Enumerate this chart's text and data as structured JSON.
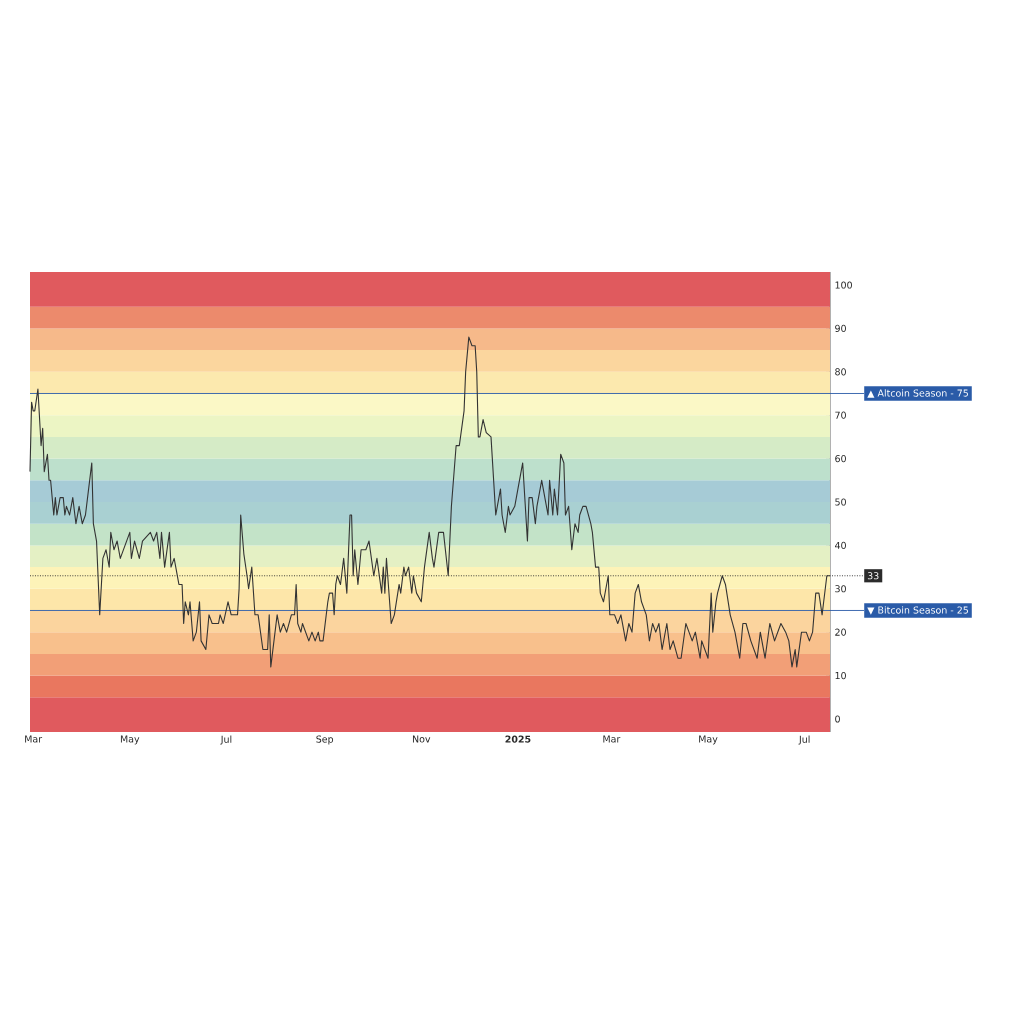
{
  "chart_data": {
    "type": "line",
    "x": [
      "2024-02-28",
      "2024-02-29",
      "2024-03-01",
      "2024-03-02",
      "2024-03-04",
      "2024-03-06",
      "2024-03-07",
      "2024-03-08",
      "2024-03-10",
      "2024-03-11",
      "2024-03-12",
      "2024-03-14",
      "2024-03-15",
      "2024-03-16",
      "2024-03-18",
      "2024-03-20",
      "2024-03-21",
      "2024-03-22",
      "2024-03-24",
      "2024-03-26",
      "2024-03-28",
      "2024-03-30",
      "2024-04-01",
      "2024-04-03",
      "2024-04-07",
      "2024-04-08",
      "2024-04-10",
      "2024-04-12",
      "2024-04-14",
      "2024-04-16",
      "2024-04-18",
      "2024-04-19",
      "2024-04-21",
      "2024-04-23",
      "2024-04-25",
      "2024-05-01",
      "2024-05-02",
      "2024-05-04",
      "2024-05-07",
      "2024-05-09",
      "2024-05-14",
      "2024-05-16",
      "2024-05-18",
      "2024-05-20",
      "2024-05-21",
      "2024-05-23",
      "2024-05-26",
      "2024-05-27",
      "2024-05-29",
      "2024-06-01",
      "2024-06-03",
      "2024-06-04",
      "2024-06-05",
      "2024-06-07",
      "2024-06-08",
      "2024-06-10",
      "2024-06-12",
      "2024-06-14",
      "2024-06-15",
      "2024-06-18",
      "2024-06-20",
      "2024-06-22",
      "2024-06-26",
      "2024-06-27",
      "2024-06-29",
      "2024-07-02",
      "2024-07-04",
      "2024-07-06",
      "2024-07-08",
      "2024-07-09",
      "2024-07-10",
      "2024-07-12",
      "2024-07-14",
      "2024-07-15",
      "2024-07-17",
      "2024-07-19",
      "2024-07-21",
      "2024-07-24",
      "2024-07-27",
      "2024-07-28",
      "2024-07-29",
      "2024-07-31",
      "2024-08-02",
      "2024-08-04",
      "2024-08-06",
      "2024-08-08",
      "2024-08-11",
      "2024-08-13",
      "2024-08-14",
      "2024-08-15",
      "2024-08-17",
      "2024-08-18",
      "2024-08-22",
      "2024-08-24",
      "2024-08-26",
      "2024-08-28",
      "2024-08-29",
      "2024-08-31",
      "2024-09-03",
      "2024-09-04",
      "2024-09-06",
      "2024-09-07",
      "2024-09-08",
      "2024-09-09",
      "2024-09-11",
      "2024-09-13",
      "2024-09-15",
      "2024-09-17",
      "2024-09-18",
      "2024-09-19",
      "2024-09-20",
      "2024-09-22",
      "2024-09-24",
      "2024-09-27",
      "2024-09-29",
      "2024-10-02",
      "2024-10-04",
      "2024-10-07",
      "2024-10-08",
      "2024-10-09",
      "2024-10-10",
      "2024-10-13",
      "2024-10-15",
      "2024-10-18",
      "2024-10-19",
      "2024-10-21",
      "2024-10-22",
      "2024-10-24",
      "2024-10-26",
      "2024-10-27",
      "2024-10-29",
      "2024-11-01",
      "2024-11-03",
      "2024-11-06",
      "2024-11-08",
      "2024-11-09",
      "2024-11-12",
      "2024-11-15",
      "2024-11-18",
      "2024-11-20",
      "2024-11-23",
      "2024-11-25",
      "2024-11-28",
      "2024-11-29",
      "2024-12-01",
      "2024-12-03",
      "2024-12-05",
      "2024-12-06",
      "2024-12-07",
      "2024-12-08",
      "2024-12-10",
      "2024-12-12",
      "2024-12-15",
      "2024-12-18",
      "2024-12-21",
      "2024-12-22",
      "2024-12-24",
      "2024-12-26",
      "2024-12-27",
      "2024-12-30",
      "2025-01-01",
      "2025-01-04",
      "2025-01-07",
      "2025-01-08",
      "2025-01-10",
      "2025-01-12",
      "2025-01-13",
      "2025-01-16",
      "2025-01-18",
      "2025-01-20",
      "2025-01-21",
      "2025-01-23",
      "2025-01-24",
      "2025-01-26",
      "2025-01-28",
      "2025-01-30",
      "2025-01-31",
      "2025-02-02",
      "2025-02-04",
      "2025-02-06",
      "2025-02-08",
      "2025-02-09",
      "2025-02-11",
      "2025-02-13",
      "2025-02-16",
      "2025-02-17",
      "2025-02-19",
      "2025-02-21",
      "2025-02-22",
      "2025-02-24",
      "2025-02-27",
      "2025-02-28",
      "2025-03-03",
      "2025-03-05",
      "2025-03-07",
      "2025-03-10",
      "2025-03-12",
      "2025-03-14",
      "2025-03-16",
      "2025-03-18",
      "2025-03-20",
      "2025-03-23",
      "2025-03-25",
      "2025-03-27",
      "2025-03-29",
      "2025-03-31",
      "2025-04-02",
      "2025-04-05",
      "2025-04-07",
      "2025-04-09",
      "2025-04-12",
      "2025-04-14",
      "2025-04-17",
      "2025-04-19",
      "2025-04-21",
      "2025-04-23",
      "2025-04-26",
      "2025-04-27",
      "2025-04-29",
      "2025-05-01",
      "2025-05-03",
      "2025-05-04",
      "2025-05-06",
      "2025-05-07",
      "2025-05-10",
      "2025-05-12",
      "2025-05-15",
      "2025-05-18",
      "2025-05-21",
      "2025-05-23",
      "2025-05-25",
      "2025-05-28",
      "2025-06-01",
      "2025-06-03",
      "2025-06-06",
      "2025-06-09",
      "2025-06-12",
      "2025-06-16",
      "2025-06-19",
      "2025-06-21",
      "2025-06-23",
      "2025-06-25",
      "2025-06-26",
      "2025-06-29",
      "2025-07-02",
      "2025-07-04",
      "2025-07-06",
      "2025-07-08",
      "2025-07-10",
      "2025-07-12",
      "2025-07-13",
      "2025-07-15",
      "2025-07-17"
    ],
    "series": [
      {
        "color": "#333333",
        "values": [
          57,
          73,
          71,
          71,
          76,
          63,
          67,
          57,
          61,
          55,
          55,
          47,
          51,
          47,
          51,
          51,
          47,
          49,
          47,
          51,
          45,
          49,
          45,
          47,
          59,
          45,
          41,
          24,
          37,
          39,
          35,
          43,
          39,
          41,
          37,
          43,
          37,
          41,
          37,
          41,
          43,
          41,
          43,
          37,
          43,
          35,
          43,
          35,
          37,
          31,
          31,
          22,
          27,
          24,
          27,
          18,
          20,
          27,
          18,
          16,
          24,
          22,
          22,
          24,
          22,
          27,
          24,
          24,
          24,
          30,
          47,
          38,
          33,
          30,
          35,
          24,
          24,
          16,
          16,
          24,
          12,
          18,
          24,
          20,
          22,
          20,
          24,
          24,
          31,
          22,
          20,
          22,
          18,
          20,
          18,
          20,
          18,
          18,
          27,
          29,
          29,
          24,
          31,
          33,
          31,
          37,
          29,
          47,
          47,
          33,
          39,
          31,
          39,
          39,
          41,
          33,
          37,
          29,
          35,
          29,
          37,
          22,
          24,
          31,
          29,
          35,
          33,
          35,
          29,
          33,
          29,
          27,
          35,
          43,
          37,
          35,
          43,
          43,
          33,
          49,
          63,
          63,
          71,
          80,
          88,
          86,
          86,
          80,
          65,
          65,
          69,
          66,
          65,
          47,
          53,
          47,
          43,
          49,
          47,
          49,
          53,
          59,
          41,
          51,
          51,
          45,
          49,
          55,
          51,
          47,
          55,
          47,
          53,
          47,
          61,
          59,
          47,
          49,
          39,
          45,
          43,
          47,
          49,
          49,
          45,
          43,
          35,
          35,
          29,
          27,
          33,
          24,
          24,
          22,
          24,
          18,
          22,
          20,
          29,
          31,
          27,
          24,
          18,
          22,
          20,
          22,
          16,
          22,
          16,
          18,
          14,
          14,
          22,
          20,
          18,
          20,
          14,
          18,
          16,
          14,
          29,
          20,
          27,
          29,
          33,
          31,
          24,
          20,
          14,
          22,
          22,
          18,
          14,
          20,
          14,
          22,
          18,
          22,
          20,
          18,
          12,
          16,
          12,
          20,
          20,
          18,
          20,
          29,
          29,
          24,
          27,
          33,
          33
        ]
      }
    ],
    "xlim": [
      "2024-02-28",
      "2025-07-17"
    ],
    "xticks": [
      {
        "value": "2024-03-01",
        "label": "Mar"
      },
      {
        "value": "2024-05-01",
        "label": "May"
      },
      {
        "value": "2024-07-01",
        "label": "Jul"
      },
      {
        "value": "2024-09-01",
        "label": "Sep"
      },
      {
        "value": "2024-11-01",
        "label": "Nov"
      },
      {
        "value": "2025-01-01",
        "label": "**2025**"
      },
      {
        "value": "2025-03-01",
        "label": "Mar"
      },
      {
        "value": "2025-05-01",
        "label": "May"
      },
      {
        "value": "2025-07-01",
        "label": "Jul"
      }
    ],
    "ylim": [
      -3,
      103
    ],
    "yticks": [
      0,
      10,
      20,
      30,
      40,
      50,
      60,
      70,
      80,
      90,
      100
    ],
    "line_style": "solid",
    "ref_lines": [
      {
        "axis": "y",
        "value": 75,
        "label": "▲ Altcoin Season - 75",
        "color": "#2a5ba8",
        "line_style": "solid"
      },
      {
        "axis": "y",
        "value": 25,
        "label": "▼ Bitcoin Season - 25",
        "color": "#2a5ba8",
        "line_style": "solid"
      },
      {
        "axis": "y",
        "value": 33,
        "label": "33",
        "color": "#2b2b2b",
        "line_style": "dotted"
      }
    ],
    "bands": [
      {
        "axis": "y",
        "from": -3,
        "to": 5,
        "color": "#e05a5e"
      },
      {
        "axis": "y",
        "from": 5,
        "to": 10,
        "color": "#e9775f"
      },
      {
        "axis": "y",
        "from": 10,
        "to": 15,
        "color": "#f29f77"
      },
      {
        "axis": "y",
        "from": 15,
        "to": 20,
        "color": "#f8c08c"
      },
      {
        "axis": "y",
        "from": 20,
        "to": 25,
        "color": "#fbd49e"
      },
      {
        "axis": "y",
        "from": 25,
        "to": 30,
        "color": "#fde6a9"
      },
      {
        "axis": "y",
        "from": 30,
        "to": 35,
        "color": "#fdf3b8"
      },
      {
        "axis": "y",
        "from": 35,
        "to": 40,
        "color": "#e4f0c4"
      },
      {
        "axis": "y",
        "from": 40,
        "to": 45,
        "color": "#c3e3c8"
      },
      {
        "axis": "y",
        "from": 45,
        "to": 50,
        "color": "#a9d0d2"
      },
      {
        "axis": "y",
        "from": 50,
        "to": 55,
        "color": "#a6cbd6"
      },
      {
        "axis": "y",
        "from": 55,
        "to": 60,
        "color": "#bde0cc"
      },
      {
        "axis": "y",
        "from": 60,
        "to": 65,
        "color": "#d5ebc6"
      },
      {
        "axis": "y",
        "from": 65,
        "to": 70,
        "color": "#ecf5c4"
      },
      {
        "axis": "y",
        "from": 70,
        "to": 75,
        "color": "#fbf8c6"
      },
      {
        "axis": "y",
        "from": 75,
        "to": 80,
        "color": "#fce9ae"
      },
      {
        "axis": "y",
        "from": 80,
        "to": 85,
        "color": "#fbd69e"
      },
      {
        "axis": "y",
        "from": 85,
        "to": 90,
        "color": "#f6b98a"
      },
      {
        "axis": "y",
        "from": 90,
        "to": 95,
        "color": "#ec8a6c"
      },
      {
        "axis": "y",
        "from": 95,
        "to": 103,
        "color": "#e05a5e"
      }
    ]
  }
}
